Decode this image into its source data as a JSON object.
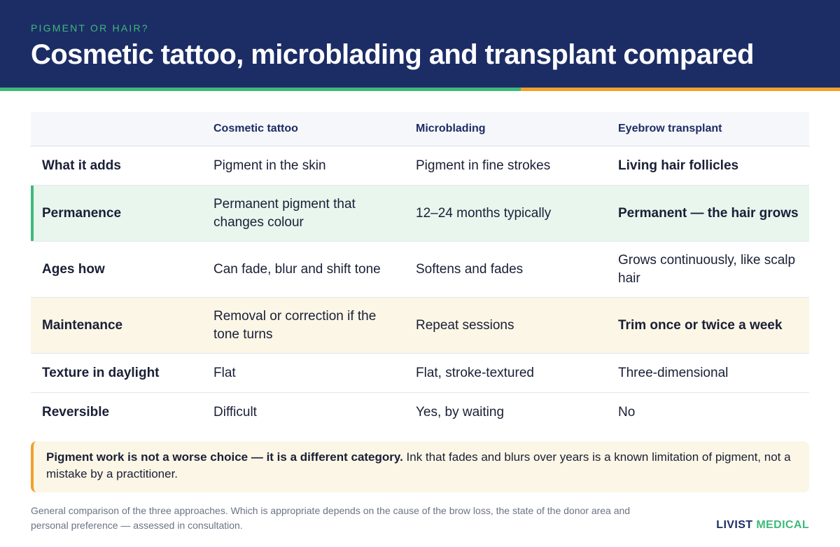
{
  "header": {
    "eyebrow": "PIGMENT OR HAIR?",
    "title": "Cosmetic tattoo, microblading and transplant compared"
  },
  "table": {
    "columns": [
      "",
      "Cosmetic tattoo",
      "Microblading",
      "Eyebrow transplant"
    ],
    "rows": [
      {
        "label": "What it adds",
        "tattoo": "Pigment in the skin",
        "micro": "Pigment in fine strokes",
        "transplant": "Living hair follicles"
      },
      {
        "label": "Permanence",
        "tattoo": "Permanent pigment that changes colour",
        "micro": "12–24 months typically",
        "transplant": "Permanent — the hair grows"
      },
      {
        "label": "Ages how",
        "tattoo": "Can fade, blur and shift tone",
        "micro": "Softens and fades",
        "transplant": "Grows continuously, like scalp hair"
      },
      {
        "label": "Maintenance",
        "tattoo": "Removal or correction if the tone turns",
        "micro": "Repeat sessions",
        "transplant": "Trim once or twice a week"
      },
      {
        "label": "Texture in daylight",
        "tattoo": "Flat",
        "micro": "Flat, stroke-textured",
        "transplant": "Three-dimensional"
      },
      {
        "label": "Reversible",
        "tattoo": "Difficult",
        "micro": "Yes, by waiting",
        "transplant": "No"
      }
    ]
  },
  "callout": {
    "strong": "Pigment work is not a worse choice — it is a different category.",
    "text": " Ink that fades and blurs over years is a known limitation of pigment, not a mistake by a practitioner."
  },
  "footnote": "General comparison of the three approaches. Which is appropriate depends on the cause of the brow loss, the state of the donor area and personal preference — assessed in consultation.",
  "brand": {
    "part1": "LIVIST",
    "part2": "MEDICAL"
  },
  "colors": {
    "navy": "#1c2d66",
    "green": "#3fb97a",
    "orange": "#f1a02a",
    "green_row": "#e8f6ee",
    "cream_row": "#fcf6e6"
  }
}
